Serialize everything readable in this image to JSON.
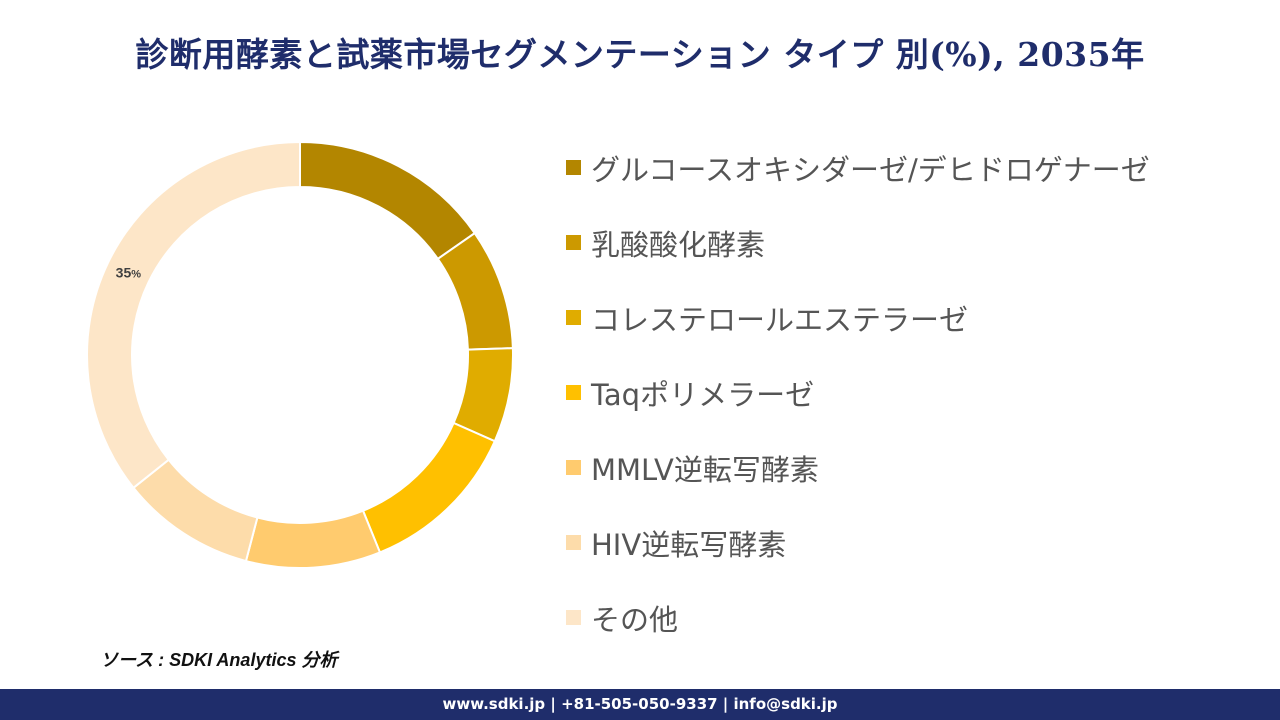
{
  "title": "診断用酵素と試薬市場セグメンテーション タイプ 別(%), 2035年",
  "chart_data": {
    "type": "pie",
    "variant": "donut",
    "title": "診断用酵素と試薬市場セグメンテーション タイプ 別(%), 2035年",
    "categories": [
      "グルコースオキシダーゼ/デヒドロゲナーゼ",
      "乳酸酸化酵素",
      "コレステロールエステラーゼ",
      "Taqポリメラーゼ",
      "MMLV逆転写酵素",
      "HIV逆転写酵素",
      "その他"
    ],
    "values": [
      15,
      9,
      7,
      12,
      10,
      10,
      35
    ],
    "colors": [
      "#b38600",
      "#cc9900",
      "#e0ac00",
      "#ffc000",
      "#ffcb6e",
      "#fddcaa",
      "#fde6c8"
    ],
    "data_labels": [
      {
        "category": "その他",
        "text": "35",
        "unit": "%"
      }
    ],
    "legend_position": "right"
  },
  "source": "ソース : SDKI Analytics 分析",
  "footer": "www.sdki.jp | +81-505-050-9337 | info@sdki.jp"
}
